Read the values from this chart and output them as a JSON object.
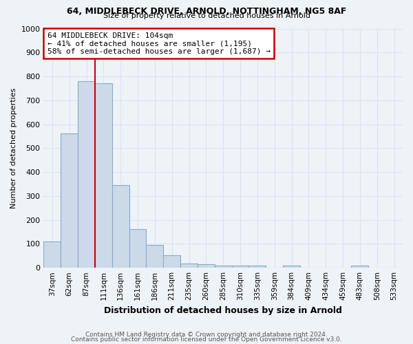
{
  "title1": "64, MIDDLEBECK DRIVE, ARNOLD, NOTTINGHAM, NG5 8AF",
  "title2": "Size of property relative to detached houses in Arnold",
  "xlabel": "Distribution of detached houses by size in Arnold",
  "ylabel": "Number of detached properties",
  "categories": [
    "37sqm",
    "62sqm",
    "87sqm",
    "111sqm",
    "136sqm",
    "161sqm",
    "186sqm",
    "211sqm",
    "235sqm",
    "260sqm",
    "285sqm",
    "310sqm",
    "335sqm",
    "359sqm",
    "384sqm",
    "409sqm",
    "434sqm",
    "459sqm",
    "483sqm",
    "508sqm",
    "533sqm"
  ],
  "values": [
    110,
    560,
    780,
    770,
    345,
    162,
    95,
    52,
    17,
    15,
    8,
    8,
    8,
    0,
    8,
    0,
    0,
    0,
    8,
    0,
    0
  ],
  "bar_color": "#ccd9e8",
  "bar_edge_color": "#8aaac8",
  "red_line_x": 2.5,
  "annotation_line1": "64 MIDDLEBECK DRIVE: 104sqm",
  "annotation_line2": "← 41% of detached houses are smaller (1,195)",
  "annotation_line3": "58% of semi-detached houses are larger (1,687) →",
  "annotation_box_color": "#ffffff",
  "annotation_box_edge": "#cc0000",
  "ylim": [
    0,
    1000
  ],
  "yticks": [
    0,
    100,
    200,
    300,
    400,
    500,
    600,
    700,
    800,
    900,
    1000
  ],
  "footer1": "Contains HM Land Registry data © Crown copyright and database right 2024.",
  "footer2": "Contains public sector information licensed under the Open Government Licence v3.0.",
  "background_color": "#eef3f8",
  "grid_color": "#d8e4f0"
}
